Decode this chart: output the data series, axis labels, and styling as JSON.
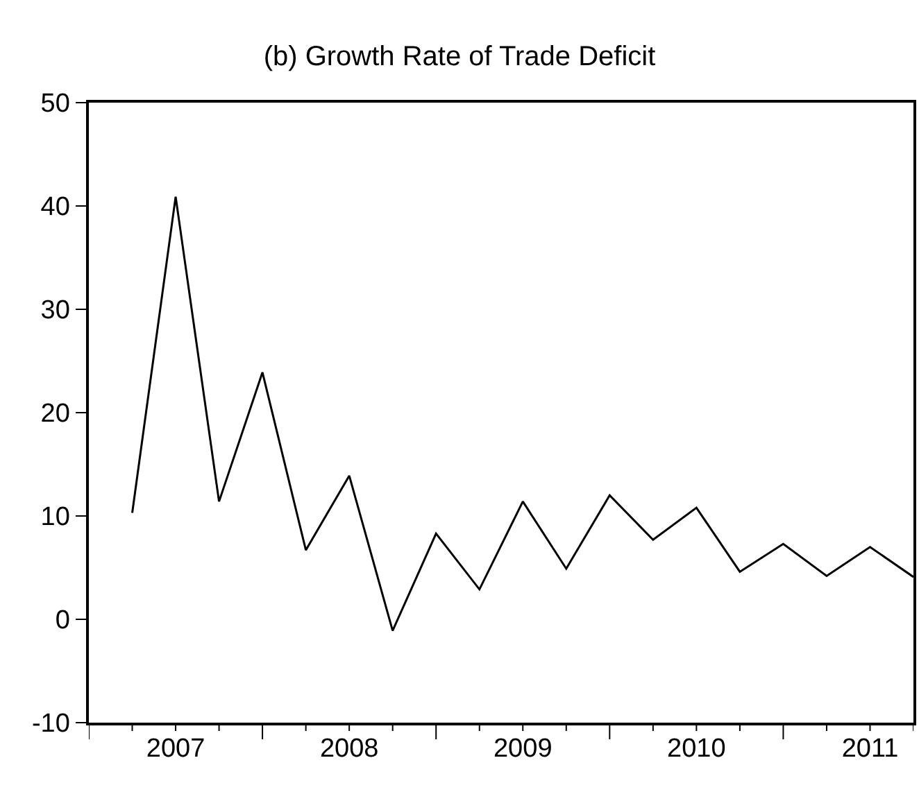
{
  "chart_data": {
    "type": "line",
    "title": "(b) Growth Rate of Trade Deficit",
    "x": [
      2007.25,
      2007.5,
      2007.75,
      2008,
      2008.25,
      2008.5,
      2008.75,
      2009,
      2009.25,
      2009.5,
      2009.75,
      2010,
      2010.25,
      2010.5,
      2010.75,
      2011,
      2011.25,
      2011.5,
      2011.75
    ],
    "series": [
      {
        "color": "#000000",
        "values": [
          10.3,
          40.9,
          11.4,
          23.9,
          6.7,
          13.9,
          -1.1,
          8.3,
          2.9,
          11.4,
          4.9,
          12.0,
          7.7,
          10.8,
          4.6,
          7.3,
          4.2,
          7.0,
          4.1
        ]
      }
    ],
    "xlim": [
      2007,
      2011.75
    ],
    "ylim": [
      -10,
      50
    ],
    "yticks": [
      -10,
      0,
      10,
      20,
      30,
      40,
      50
    ],
    "xticks": [
      {
        "value": 2007.5,
        "label": "2007"
      },
      {
        "value": 2008.5,
        "label": "2008"
      },
      {
        "value": 2009.5,
        "label": "2009"
      },
      {
        "value": 2010.5,
        "label": "2010"
      },
      {
        "value": 2011.5,
        "label": "2011"
      },
      {
        "value": 2007,
        "label": null
      },
      {
        "value": 2007.25,
        "label": null
      },
      {
        "value": 2007.5,
        "label": null
      },
      {
        "value": 2007.75,
        "label": null
      },
      {
        "value": 2008,
        "label": null
      },
      {
        "value": 2008.25,
        "label": null
      },
      {
        "value": 2008.5,
        "label": null
      },
      {
        "value": 2008.75,
        "label": null
      },
      {
        "value": 2009,
        "label": null
      },
      {
        "value": 2009.25,
        "label": null
      },
      {
        "value": 2009.5,
        "label": null
      },
      {
        "value": 2009.75,
        "label": null
      },
      {
        "value": 2010,
        "label": null
      },
      {
        "value": 2010.25,
        "label": null
      },
      {
        "value": 2010.5,
        "label": null
      },
      {
        "value": 2010.75,
        "label": null
      },
      {
        "value": 2011,
        "label": null
      },
      {
        "value": 2011.25,
        "label": null
      },
      {
        "value": 2011.5,
        "label": null
      },
      {
        "value": 2011.75,
        "label": null
      }
    ],
    "marker": "none",
    "line_style": "solid"
  }
}
